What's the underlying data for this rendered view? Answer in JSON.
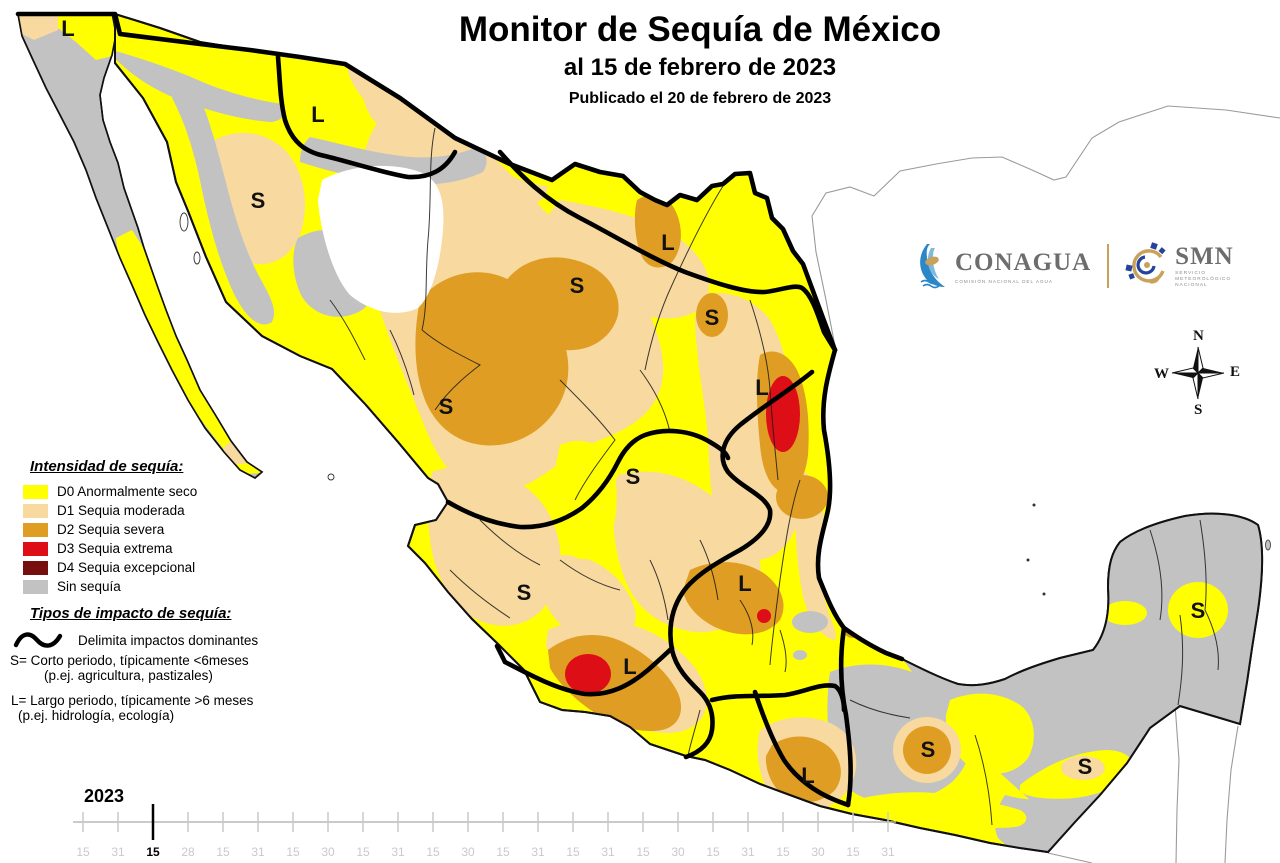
{
  "title": {
    "main": "Monitor de Sequía de México",
    "subtitle": "al 15 de febrero de 2023",
    "published": "Publicado el 20 de febrero de 2023"
  },
  "logos": {
    "conagua": {
      "name": "CONAGUA",
      "tagline": "COMISIÓN NACIONAL DEL AGUA"
    },
    "smn": {
      "name": "SMN",
      "tagline_lines": [
        "SERVICIO",
        "METEOROLÓGICO",
        "NACIONAL"
      ]
    }
  },
  "compass": {
    "north": "N",
    "south": "S",
    "east": "E",
    "west": "W"
  },
  "legend": {
    "intensity_title": "Intensidad de sequía:",
    "items": [
      {
        "label": "D0 Anormalmente seco",
        "color": "#FFFF00"
      },
      {
        "label": "D1 Sequia moderada",
        "color": "#F8D9A0"
      },
      {
        "label": "D2 Sequia severa",
        "color": "#DF9E23"
      },
      {
        "label": "D3 Sequia extrema",
        "color": "#DD0E15"
      },
      {
        "label": "D4 Sequia excepcional",
        "color": "#780F0F"
      },
      {
        "label": "Sin sequía",
        "color": "#C2C2C2"
      }
    ],
    "impact_title": "Tipos de impacto de sequía:",
    "impact_delimiter": "Delimita impactos dominantes",
    "impact_s": "S= Corto periodo, típicamente <6meses",
    "impact_s2": "(p.ej. agricultura, pastizales)",
    "impact_l": "L= Largo periodo, típicamente >6 meses",
    "impact_l2": "(p.ej. hidrología, ecología)"
  },
  "timeline": {
    "year": "2023",
    "active_index": 2,
    "ticks": [
      "15",
      "31",
      "15",
      "28",
      "15",
      "31",
      "15",
      "30",
      "15",
      "31",
      "15",
      "30",
      "15",
      "31",
      "15",
      "31",
      "15",
      "30",
      "15",
      "31",
      "15",
      "30",
      "15",
      "31"
    ]
  },
  "map": {
    "colors": {
      "d0": "#FFFF00",
      "d1": "#F8D9A0",
      "d2": "#DF9E23",
      "d3": "#DD0E15",
      "d4": "#780F0F",
      "no_drought": "#C2C2C2",
      "no_data": "#FFFFFF"
    },
    "markers": [
      {
        "label": "L"
      },
      {
        "label": "L"
      },
      {
        "label": "S"
      },
      {
        "label": "L"
      },
      {
        "label": "S"
      },
      {
        "label": "S"
      },
      {
        "label": "S"
      },
      {
        "label": "L"
      },
      {
        "label": "S"
      },
      {
        "label": "S"
      },
      {
        "label": "L"
      },
      {
        "label": "L"
      },
      {
        "label": "L"
      },
      {
        "label": "S"
      },
      {
        "label": "S"
      },
      {
        "label": "S"
      }
    ]
  }
}
